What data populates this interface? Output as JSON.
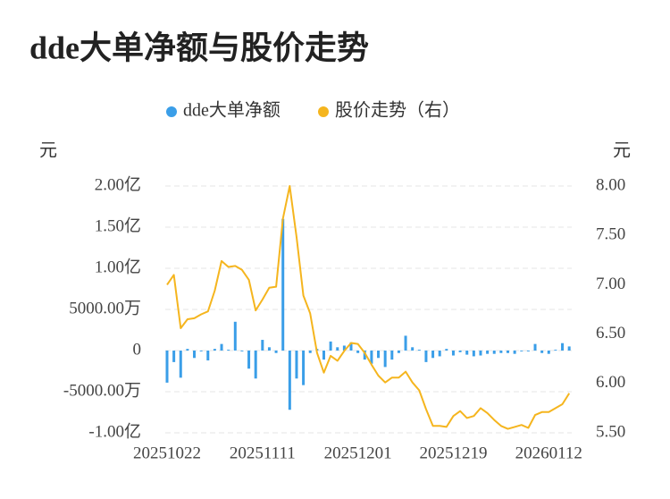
{
  "chart_data": {
    "type": "bar-line",
    "title": "dde大单净额与股价走势",
    "y_label": "元",
    "y2_label": "元",
    "categories": [
      "20251022",
      null,
      null,
      null,
      null,
      null,
      null,
      null,
      null,
      null,
      null,
      null,
      null,
      null,
      "20251111",
      null,
      null,
      null,
      null,
      null,
      null,
      null,
      null,
      null,
      null,
      null,
      null,
      null,
      "20251201",
      null,
      null,
      null,
      null,
      null,
      null,
      null,
      null,
      null,
      null,
      null,
      null,
      null,
      "20251219",
      null,
      null,
      null,
      null,
      null,
      null,
      null,
      null,
      null,
      null,
      null,
      null,
      null,
      "20260112",
      null,
      null,
      null
    ],
    "series": [
      {
        "name": "dde大单净额",
        "type": "bar",
        "color": "#3a9ee8",
        "values": [
          -3900,
          -1400,
          -3300,
          200,
          -900,
          -100,
          -1200,
          200,
          800,
          100,
          3500,
          -100,
          -2200,
          -3400,
          1300,
          400,
          -300,
          16000,
          -7200,
          -3400,
          -4200,
          -300,
          200,
          -1100,
          1100,
          400,
          600,
          1000,
          -300,
          -1100,
          -1600,
          -900,
          -2000,
          -1100,
          -300,
          1800,
          400,
          100,
          -1400,
          -900,
          -700,
          200,
          -600,
          -200,
          -500,
          -700,
          -600,
          -400,
          -400,
          -300,
          -300,
          -400,
          -100,
          -100,
          800,
          -300,
          -400,
          100,
          900,
          500
        ]
      },
      {
        "name": "股价走势（右）",
        "type": "line",
        "axis": "y2",
        "color": "#f5b51e",
        "values": [
          7.0,
          7.1,
          6.56,
          6.65,
          6.66,
          6.7,
          6.73,
          6.94,
          7.24,
          7.18,
          7.19,
          7.15,
          7.05,
          6.74,
          6.85,
          6.97,
          6.98,
          7.67,
          8.0,
          7.48,
          6.89,
          6.71,
          6.31,
          6.11,
          6.28,
          6.23,
          6.33,
          6.41,
          6.4,
          6.31,
          6.19,
          6.08,
          6.01,
          6.06,
          6.06,
          6.12,
          6.01,
          5.93,
          5.74,
          5.57,
          5.57,
          5.56,
          5.67,
          5.72,
          5.65,
          5.67,
          5.75,
          5.7,
          5.63,
          5.57,
          5.54,
          5.56,
          5.58,
          5.55,
          5.68,
          5.71,
          5.71,
          5.75,
          5.79,
          5.9
        ]
      }
    ],
    "ylim": [
      -10000,
      20000
    ],
    "yticks": [
      {
        "value": 20000,
        "label": "2.00亿"
      },
      {
        "value": 15000,
        "label": "1.50亿"
      },
      {
        "value": 10000,
        "label": "1.00亿"
      },
      {
        "value": 5000,
        "label": "5000.00万"
      },
      0,
      {
        "value": -5000,
        "label": "-5000.00万"
      },
      {
        "value": -10000,
        "label": "-1.00亿"
      }
    ],
    "y2lim": [
      5.5,
      8
    ],
    "y2ticks": [
      {
        "value": 8,
        "label": "8.00"
      },
      {
        "value": 7.5,
        "label": "7.50"
      },
      {
        "value": 7,
        "label": "7.00"
      },
      {
        "value": 6.5,
        "label": "6.50"
      },
      {
        "value": 6,
        "label": "6.00"
      },
      {
        "value": 5.5,
        "label": "5.50"
      }
    ],
    "grid": true
  }
}
